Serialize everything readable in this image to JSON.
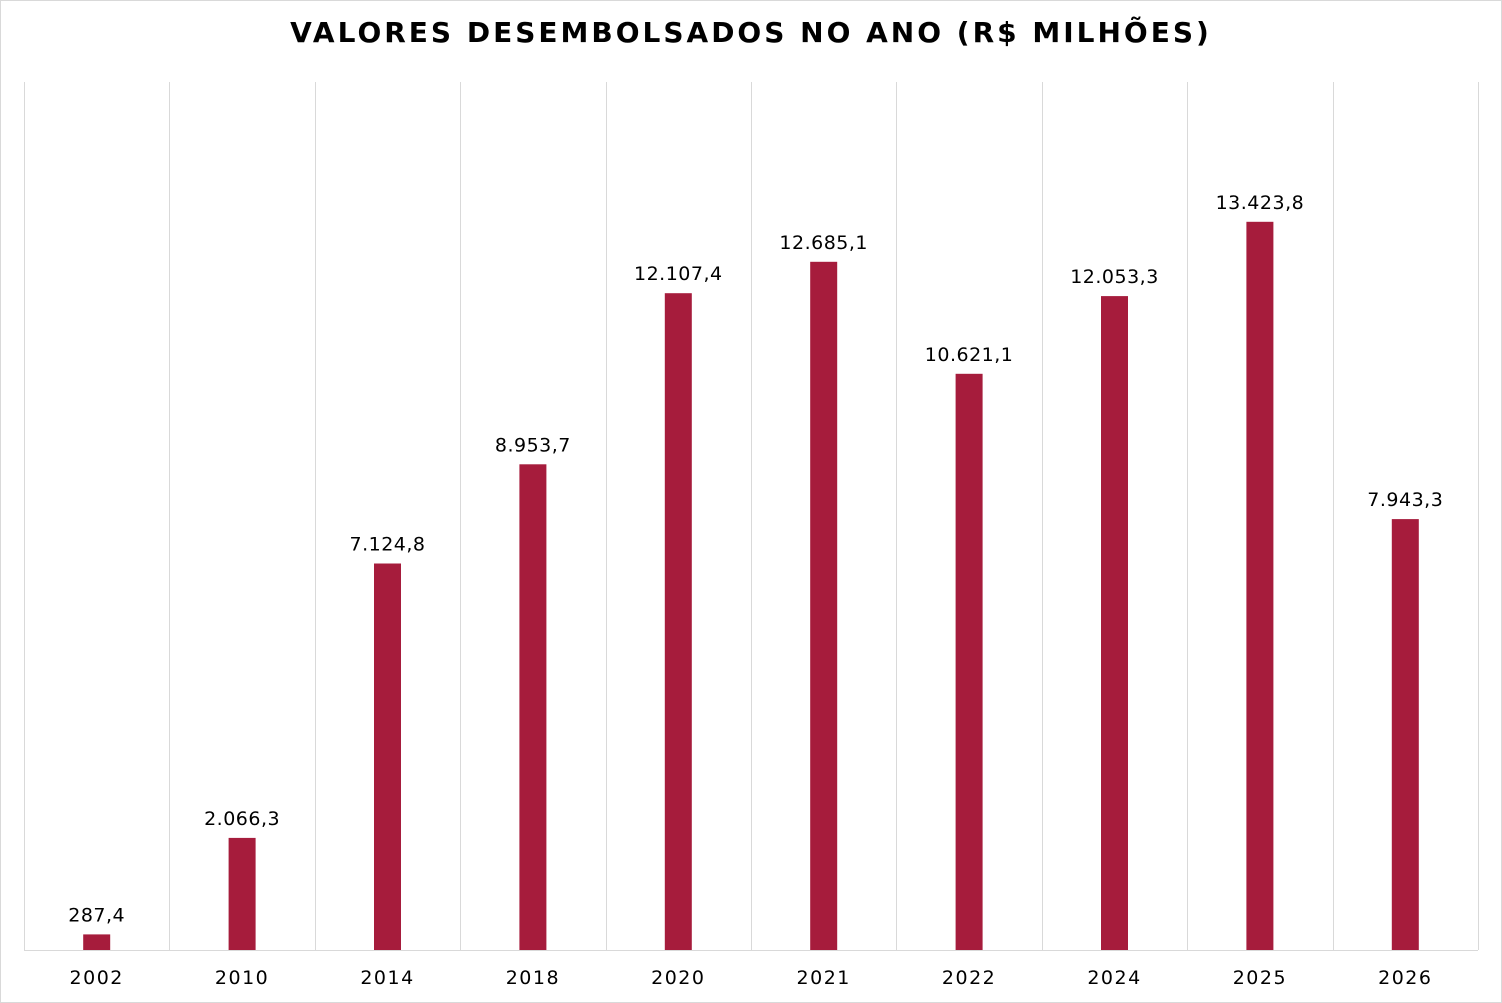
{
  "chart_data": {
    "type": "bar",
    "title": "VALORES DESEMBOLSADOS NO ANO (R$ MILHÕES)",
    "categories": [
      "2002",
      "2010",
      "2014",
      "2018",
      "2020",
      "2021",
      "2022",
      "2024",
      "2025",
      "2026"
    ],
    "values": [
      287.4,
      2066.3,
      7124.8,
      8953.7,
      12107.4,
      12685.1,
      10621.1,
      12053.3,
      13423.8,
      7943.3
    ],
    "data_labels": [
      "287,4",
      "2.066,3",
      "7.124,8",
      "8.953,7",
      "12.107,4",
      "12.685,1",
      "10.621,1",
      "12.053,3",
      "13.423,8",
      "7.943,3"
    ],
    "xlabel": "",
    "ylabel": "",
    "ylim": [
      0,
      16000
    ],
    "y_axis_visible": false,
    "vertical_gridlines": true,
    "horizontal_gridlines": false,
    "legend": "none",
    "bar_color": "#a61c3c",
    "gridline_color": "#d9d9d9"
  }
}
